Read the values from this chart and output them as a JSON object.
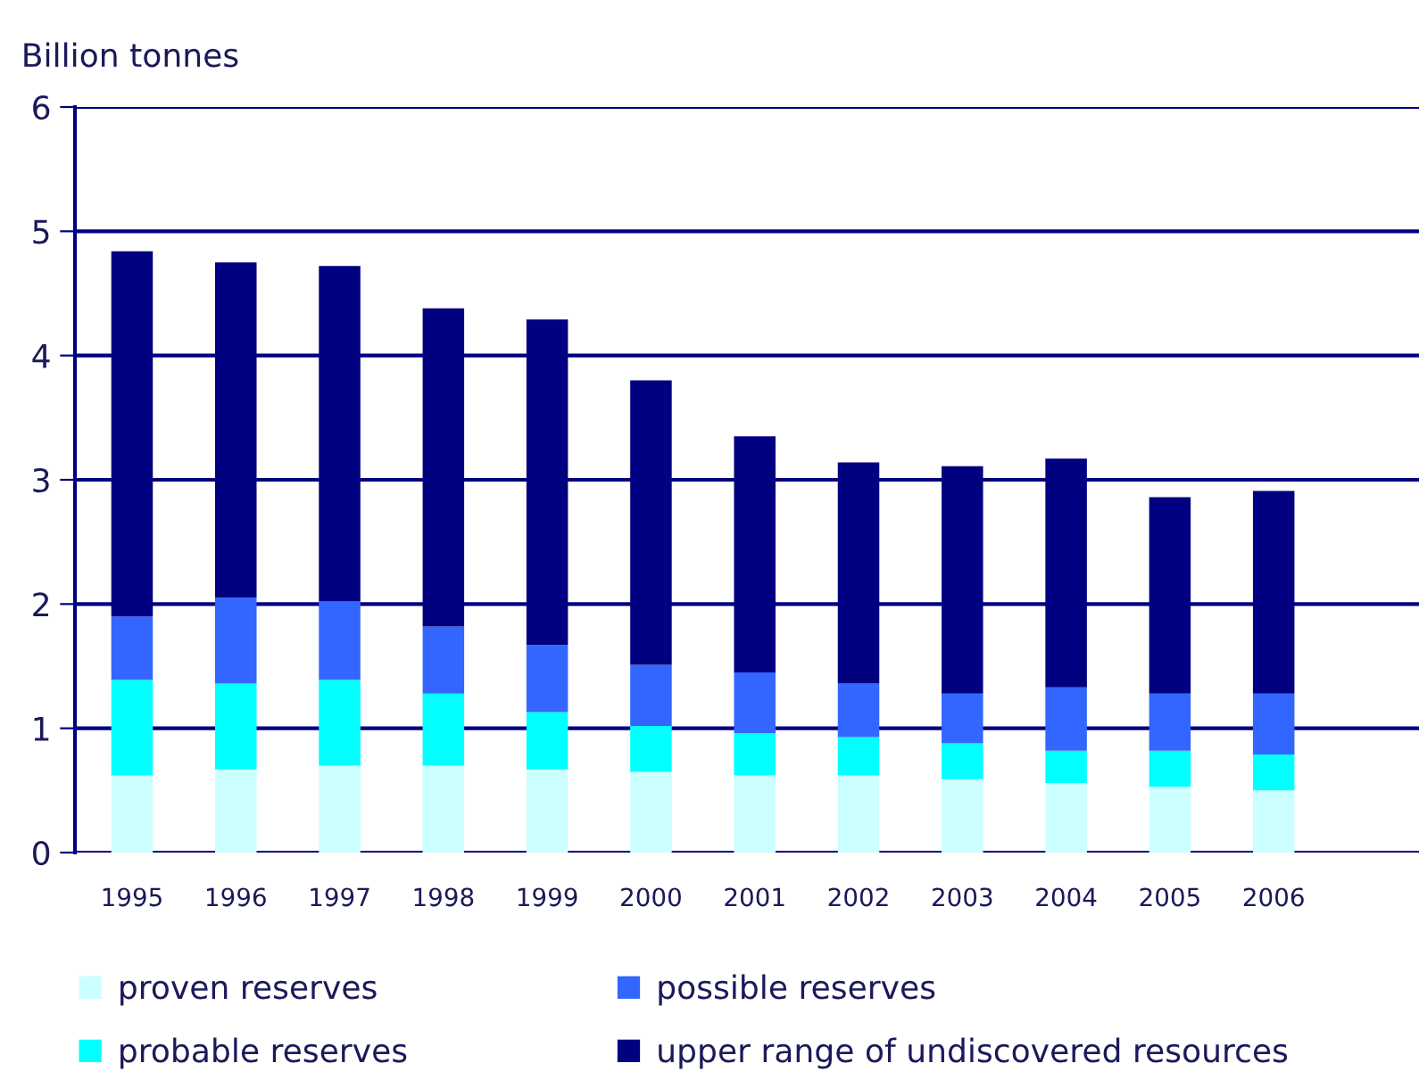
{
  "chart_data": {
    "type": "bar",
    "stacked": true,
    "ylabel": "Billion tonnes",
    "categories": [
      "1995",
      "1996",
      "1997",
      "1998",
      "1999",
      "2000",
      "2001",
      "2002",
      "2003",
      "2004",
      "2005",
      "2006"
    ],
    "series": [
      {
        "name": "proven reserves",
        "color": "#ccffff",
        "values": [
          0.62,
          0.67,
          0.7,
          0.7,
          0.67,
          0.65,
          0.62,
          0.62,
          0.59,
          0.56,
          0.53,
          0.5
        ]
      },
      {
        "name": "probable reserves",
        "color": "#00ffff",
        "values": [
          0.77,
          0.69,
          0.69,
          0.58,
          0.46,
          0.37,
          0.34,
          0.31,
          0.29,
          0.26,
          0.29,
          0.29
        ]
      },
      {
        "name": "possible reserves",
        "color": "#3366ff",
        "values": [
          0.51,
          0.69,
          0.63,
          0.54,
          0.54,
          0.49,
          0.49,
          0.43,
          0.4,
          0.51,
          0.46,
          0.49
        ]
      },
      {
        "name": "upper range of undiscovered resources",
        "color": "#000080",
        "values": [
          2.94,
          2.7,
          2.7,
          2.56,
          2.62,
          2.29,
          1.9,
          1.78,
          1.83,
          1.84,
          1.58,
          1.63
        ]
      }
    ],
    "ylim": [
      0,
      6
    ],
    "yticks": [
      0,
      1,
      2,
      3,
      4,
      5,
      6
    ],
    "grid": "y",
    "legend": "bottom"
  }
}
